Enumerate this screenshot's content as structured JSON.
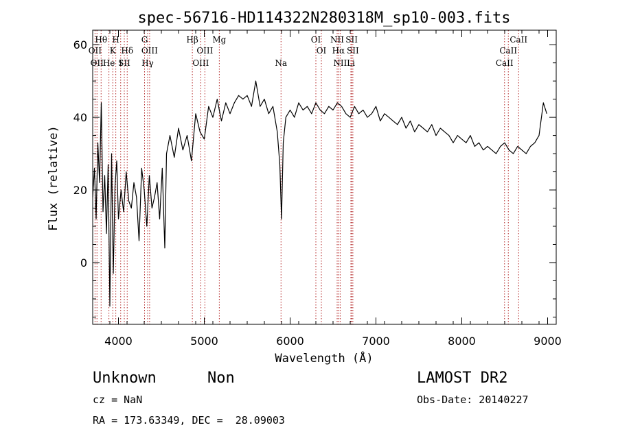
{
  "chart_data": {
    "type": "line",
    "title": "spec-56716-HD114322N280318M_sp10-003.fits",
    "xlabel": "Wavelength (Å)",
    "ylabel": "Flux (relative)",
    "xlim": [
      3700,
      9100
    ],
    "ylim": [
      -17,
      64
    ],
    "xticks": [
      4000,
      5000,
      6000,
      7000,
      8000,
      9000
    ],
    "yticks": [
      0,
      20,
      40,
      60
    ],
    "grid": false,
    "line_color": "#000000",
    "marker_color": "#b22222",
    "series": [
      {
        "x": [
          3700,
          3720,
          3740,
          3760,
          3780,
          3800,
          3820,
          3840,
          3860,
          3880,
          3900,
          3920,
          3940,
          3960,
          3980,
          4000,
          4030,
          4060,
          4090,
          4120,
          4150,
          4180,
          4210,
          4240,
          4270,
          4300,
          4330,
          4360,
          4390,
          4420,
          4450,
          4480,
          4510,
          4540,
          4560,
          4600,
          4650,
          4700,
          4750,
          4800,
          4850,
          4900,
          4950,
          5000,
          5050,
          5100,
          5150,
          5200,
          5250,
          5300,
          5350,
          5400,
          5450,
          5500,
          5550,
          5600,
          5650,
          5700,
          5750,
          5800,
          5850,
          5880,
          5900,
          5920,
          5950,
          6000,
          6050,
          6100,
          6150,
          6200,
          6250,
          6300,
          6350,
          6400,
          6450,
          6500,
          6550,
          6600,
          6650,
          6700,
          6750,
          6800,
          6850,
          6900,
          6950,
          7000,
          7050,
          7100,
          7150,
          7200,
          7250,
          7300,
          7350,
          7400,
          7450,
          7500,
          7550,
          7600,
          7650,
          7700,
          7750,
          7800,
          7850,
          7900,
          7950,
          8000,
          8050,
          8100,
          8150,
          8200,
          8250,
          8300,
          8350,
          8400,
          8450,
          8500,
          8550,
          8600,
          8650,
          8700,
          8750,
          8800,
          8850,
          8900,
          8950,
          8990
        ],
        "y": [
          18,
          26,
          12,
          33,
          22,
          44,
          14,
          24,
          8,
          27,
          -12,
          30,
          -3,
          21,
          28,
          12,
          20,
          14,
          25,
          17,
          15,
          22,
          18,
          6,
          26,
          20,
          10,
          24,
          15,
          18,
          22,
          12,
          26,
          4,
          30,
          35,
          29,
          37,
          31,
          35,
          28,
          41,
          36,
          34,
          43,
          40,
          45,
          39,
          44,
          41,
          44,
          46,
          45,
          46,
          43,
          50,
          43,
          45,
          41,
          43,
          36,
          27,
          12,
          33,
          40,
          42,
          40,
          44,
          42,
          43,
          41,
          44,
          42,
          41,
          43,
          42,
          44,
          43,
          41,
          40,
          43,
          41,
          42,
          40,
          41,
          43,
          39,
          41,
          40,
          39,
          38,
          40,
          37,
          39,
          36,
          38,
          37,
          36,
          38,
          35,
          37,
          36,
          35,
          33,
          35,
          34,
          33,
          35,
          32,
          33,
          31,
          32,
          31,
          30,
          32,
          33,
          31,
          30,
          32,
          31,
          30,
          32,
          33,
          35,
          44,
          41
        ]
      }
    ],
    "lines": [
      {
        "wl": 3727,
        "label": "OII",
        "row": 2
      },
      {
        "wl": 3750,
        "label": "OII",
        "row": 3
      },
      {
        "wl": 3798,
        "label": "Hθ",
        "row": 1
      },
      {
        "wl": 3889,
        "label": "He",
        "row": 3
      },
      {
        "wl": 3934,
        "label": "K",
        "row": 2
      },
      {
        "wl": 3969,
        "label": "H",
        "row": 1
      },
      {
        "wl": 4026,
        "label": "I",
        "row": 3
      },
      {
        "wl": 4068,
        "label": "SII",
        "row": 3
      },
      {
        "wl": 4102,
        "label": "Hδ",
        "row": 2
      },
      {
        "wl": 4304,
        "label": "G",
        "row": 1
      },
      {
        "wl": 4340,
        "label": "Hγ",
        "row": 3
      },
      {
        "wl": 4363,
        "label": "OIII",
        "row": 2
      },
      {
        "wl": 4861,
        "label": "Hβ",
        "row": 1
      },
      {
        "wl": 4959,
        "label": "OIII",
        "row": 3
      },
      {
        "wl": 5007,
        "label": "OIII",
        "row": 2
      },
      {
        "wl": 5175,
        "label": "Mg",
        "row": 1
      },
      {
        "wl": 5894,
        "label": "Na",
        "row": 3
      },
      {
        "wl": 6300,
        "label": "OI",
        "row": 1
      },
      {
        "wl": 6364,
        "label": "OI",
        "row": 2
      },
      {
        "wl": 6548,
        "label": "NII",
        "row": 1
      },
      {
        "wl": 6563,
        "label": "Hα",
        "row": 2
      },
      {
        "wl": 6583,
        "label": "NII",
        "row": 3
      },
      {
        "wl": 6708,
        "label": "Li",
        "row": 3
      },
      {
        "wl": 6717,
        "label": "SII",
        "row": 1
      },
      {
        "wl": 6731,
        "label": "SII",
        "row": 2
      },
      {
        "wl": 8498,
        "label": "CaII",
        "row": 3
      },
      {
        "wl": 8542,
        "label": "CaII",
        "row": 2
      },
      {
        "wl": 8662,
        "label": "CaII",
        "row": 1
      }
    ]
  },
  "info": {
    "class": "Unknown",
    "subclass": "Non",
    "survey": "LAMOST DR2",
    "cz": "cz = NaN",
    "obs_date": "Obs-Date: 20140227",
    "coords": "RA = 173.63349, DEC =  28.09003"
  }
}
